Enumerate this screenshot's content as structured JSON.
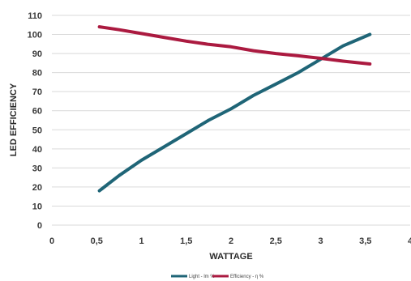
{
  "chart_data": {
    "type": "line",
    "xlabel": "WATTAGE",
    "ylabel": "LED EFFICIENCY",
    "xlim": [
      0,
      4
    ],
    "ylim": [
      0,
      110
    ],
    "x_ticks": [
      "0",
      "0,5",
      "1",
      "1,5",
      "2",
      "2,5",
      "3",
      "3,5",
      "4"
    ],
    "x_tick_values": [
      0,
      0.5,
      1,
      1.5,
      2,
      2.5,
      3,
      3.5,
      4
    ],
    "y_ticks": [
      "0",
      "10",
      "20",
      "30",
      "40",
      "50",
      "60",
      "70",
      "80",
      "90",
      "100",
      "110"
    ],
    "y_tick_values": [
      0,
      10,
      20,
      30,
      40,
      50,
      60,
      70,
      80,
      90,
      100,
      110
    ],
    "grid": "horizontal",
    "legend_position": "bottom",
    "series": [
      {
        "name": "Light - lm %",
        "color": "#1f6577",
        "x": [
          0.53,
          0.75,
          1.0,
          1.25,
          1.5,
          1.75,
          2.0,
          2.25,
          2.5,
          2.75,
          3.0,
          3.25,
          3.55
        ],
        "values": [
          18,
          26,
          34,
          41,
          48,
          55,
          61,
          68,
          74,
          80,
          87,
          94,
          100
        ]
      },
      {
        "name": "Efficiency - η %",
        "color": "#ab1a40",
        "x": [
          0.53,
          0.75,
          1.0,
          1.25,
          1.5,
          1.75,
          2.0,
          2.25,
          2.5,
          2.75,
          3.0,
          3.25,
          3.55
        ],
        "values": [
          104,
          102.5,
          100.5,
          98.5,
          96.5,
          94.8,
          93.5,
          91.5,
          90,
          88.8,
          87.5,
          86,
          84.5
        ]
      }
    ]
  }
}
